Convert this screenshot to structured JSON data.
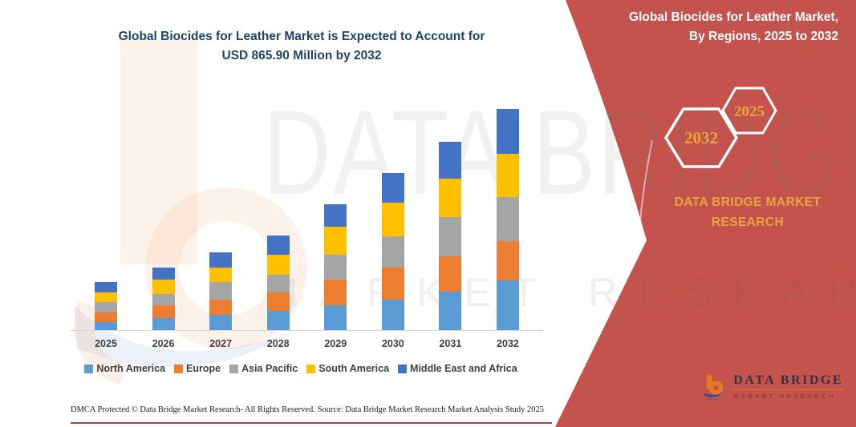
{
  "chart": {
    "title_line1": "Global Biocides for Leather Market is Expected to Account for",
    "title_line2": "USD 865.90 Million by 2032"
  },
  "chart_data": {
    "type": "bar",
    "subtype": "stacked",
    "title": "Global Biocides for Leather Market is Expected to Account for USD 865.90 Million by 2032",
    "unit": "USD Million",
    "categories": [
      "2025",
      "2026",
      "2027",
      "2028",
      "2029",
      "2030",
      "2031",
      "2032"
    ],
    "series": [
      {
        "name": "North America",
        "color": "#5B9BD5",
        "values": [
          30,
          47,
          60,
          75,
          97,
          120,
          150,
          195
        ]
      },
      {
        "name": "Europe",
        "color": "#ED7D31",
        "values": [
          38,
          49,
          60,
          74,
          100,
          126,
          138,
          154
        ]
      },
      {
        "name": "Asia Pacific",
        "color": "#A5A5A5",
        "values": [
          41,
          46,
          67,
          68,
          99,
          120,
          155,
          172
        ]
      },
      {
        "name": "South America",
        "color": "#FFC000",
        "values": [
          37,
          55,
          57,
          77,
          108,
          132,
          150,
          170
        ]
      },
      {
        "name": "Middle East and Africa",
        "color": "#4472C4",
        "values": [
          43,
          48,
          61,
          77,
          89,
          117,
          145,
          174.9
        ]
      }
    ],
    "totals_estimated": [
      189,
      245,
      305,
      371,
      493,
      615,
      738,
      865.9
    ],
    "highlight_value": "USD 865.90 Million by 2032",
    "xlabel": "",
    "ylabel": "",
    "ylim": [
      0,
      880
    ],
    "grid": false,
    "legend_position": "bottom"
  },
  "sidebar": {
    "title_line1": "Global Biocides for Leather Market,",
    "title_line2": "By Regions, 2025 to 2032",
    "hexagon_back_label": "2032",
    "hexagon_front_label": "2025",
    "brand_line1": "DATA BRIDGE MARKET",
    "brand_line2": "RESEARCH",
    "logo_title": "DATA BRIDGE",
    "logo_subtitle": "MARKET RESEARCH"
  },
  "watermarks": {
    "text_top": "DATA BRIDGE",
    "text_bottom": "MARKET RESEARCH"
  },
  "footer": {
    "dmca": "DMCA Protected © Data Bridge Market Research-  All Rights Reserved.",
    "source": "Source: Data Bridge Market Research  Market Analysis Study 2025"
  },
  "colors": {
    "accent_red": "#C4534D",
    "gold": "#E8A33D",
    "title_navy": "#1F4468",
    "axis_text": "#404040",
    "logo_orange": "#E87722",
    "logo_blue": "#2B4C9B"
  }
}
